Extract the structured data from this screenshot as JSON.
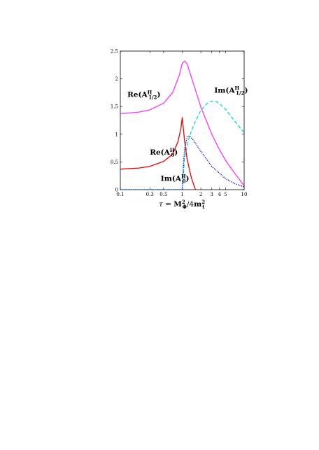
{
  "chart_data": {
    "type": "line",
    "xscale": "log",
    "xlim": [
      0.1,
      10
    ],
    "ylim": [
      0,
      2.5
    ],
    "xlabel": "τ = M²_Φ/4m²_t",
    "xticks": [
      {
        "value": 0.1,
        "label": "0.1"
      },
      {
        "value": 0.3,
        "label": "0.3"
      },
      {
        "value": 0.5,
        "label": "0.5"
      },
      {
        "value": 1,
        "label": "1"
      },
      {
        "value": 2,
        "label": "2"
      },
      {
        "value": 3,
        "label": "3"
      },
      {
        "value": 4,
        "label": "4"
      },
      {
        "value": 5,
        "label": "5"
      },
      {
        "value": 10,
        "label": "10"
      }
    ],
    "yticks": [
      {
        "value": 0,
        "label": "0"
      },
      {
        "value": 0.5,
        "label": "0.5"
      },
      {
        "value": 1,
        "label": "1"
      },
      {
        "value": 1.5,
        "label": "1.5"
      },
      {
        "value": 2,
        "label": "2"
      },
      {
        "value": 2.5,
        "label": "2.5"
      }
    ],
    "series": [
      {
        "name": "Re(A½)",
        "display": "Re(A^H_{1/2})",
        "color": "#ff33ff",
        "dash": "solid",
        "points": [
          [
            0.1,
            1.37
          ],
          [
            0.2,
            1.4
          ],
          [
            0.3,
            1.44
          ],
          [
            0.5,
            1.56
          ],
          [
            0.7,
            1.75
          ],
          [
            0.9,
            2.07
          ],
          [
            1.0,
            2.28
          ],
          [
            1.1,
            2.32
          ],
          [
            1.2,
            2.27
          ],
          [
            1.5,
            1.93
          ],
          [
            2,
            1.49
          ],
          [
            3,
            1.0
          ],
          [
            4,
            0.72
          ],
          [
            5,
            0.53
          ],
          [
            7,
            0.3
          ],
          [
            10,
            0.07
          ]
        ]
      },
      {
        "name": "Im(A½)",
        "display": "Im(A^H_{1/2})",
        "color": "#00dddd",
        "dash": "dashed",
        "points": [
          [
            0.1,
            0
          ],
          [
            0.999,
            0
          ],
          [
            1.1,
            0.6
          ],
          [
            1.3,
            0.95
          ],
          [
            1.6,
            1.22
          ],
          [
            2,
            1.43
          ],
          [
            2.5,
            1.55
          ],
          [
            3,
            1.6
          ],
          [
            3.5,
            1.59
          ],
          [
            4,
            1.55
          ],
          [
            5,
            1.45
          ],
          [
            7,
            1.24
          ],
          [
            10,
            1.03
          ]
        ]
      },
      {
        "name": "Re(A0)",
        "display": "Re(A^H_0)",
        "color": "#ee0000",
        "dash": "solid",
        "points": [
          [
            0.1,
            0.37
          ],
          [
            0.2,
            0.39
          ],
          [
            0.3,
            0.42
          ],
          [
            0.5,
            0.51
          ],
          [
            0.7,
            0.64
          ],
          [
            0.85,
            0.86
          ],
          [
            0.95,
            1.1
          ],
          [
            1.0,
            1.3
          ],
          [
            1.1,
            0.85
          ],
          [
            1.2,
            0.55
          ],
          [
            1.4,
            0.22
          ],
          [
            1.6,
            0.03
          ],
          [
            1.65,
            0
          ]
        ]
      },
      {
        "name": "Im(A0)",
        "display": "Im(A^H_0)",
        "color": "#0000cc",
        "dash": "dotted",
        "points": [
          [
            0.1,
            0
          ],
          [
            0.999,
            0
          ],
          [
            1.05,
            0.5
          ],
          [
            1.1,
            0.75
          ],
          [
            1.2,
            0.95
          ],
          [
            1.3,
            0.97
          ],
          [
            1.5,
            0.9
          ],
          [
            2,
            0.69
          ],
          [
            3,
            0.42
          ],
          [
            5,
            0.2
          ],
          [
            7,
            0.11
          ],
          [
            10,
            0.05
          ]
        ]
      }
    ],
    "annotations": [
      {
        "series": "Re(A½)",
        "x": 0.13,
        "y": 1.67
      },
      {
        "series": "Im(A½)",
        "x": 3.3,
        "y": 1.75
      },
      {
        "series": "Re(A0)",
        "x": 0.3,
        "y": 0.63
      },
      {
        "series": "Im(A0)",
        "x": 0.45,
        "y": 0.16
      }
    ],
    "grid": false,
    "legend": "none"
  }
}
